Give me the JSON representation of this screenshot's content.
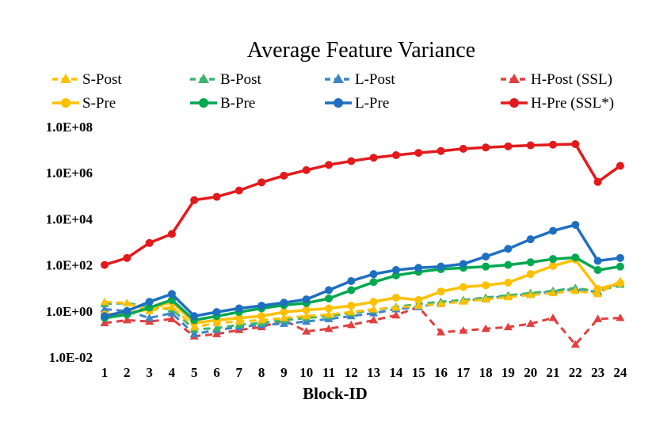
{
  "chart_data": {
    "type": "line",
    "title": "Average Feature Variance",
    "xlabel": "Block-ID",
    "ylabel": "",
    "yscale": "log",
    "ylim": [
      0.01,
      100000000
    ],
    "categories": [
      "1",
      "2",
      "3",
      "4",
      "5",
      "6",
      "7",
      "8",
      "9",
      "10",
      "11",
      "12",
      "13",
      "14",
      "15",
      "16",
      "17",
      "18",
      "19",
      "20",
      "21",
      "22",
      "23",
      "24"
    ],
    "yticks": [
      {
        "value": 0.01,
        "label": "1.0E-02"
      },
      {
        "value": 1,
        "label": "1.0E+00"
      },
      {
        "value": 100,
        "label": "1.0E+02"
      },
      {
        "value": 10000,
        "label": "1.0E+04"
      },
      {
        "value": 1000000,
        "label": "1.0E+06"
      },
      {
        "value": 100000000,
        "label": "1.0E+08"
      }
    ],
    "legend_position": "top",
    "series": [
      {
        "name": "S-Post",
        "color": "#FFC000",
        "dashed": true,
        "marker": "triangle",
        "values": [
          2.5,
          2.2,
          1.0,
          1.5,
          0.2,
          0.3,
          0.35,
          0.4,
          0.5,
          0.6,
          0.7,
          0.9,
          1.2,
          1.4,
          1.7,
          2.0,
          2.6,
          3.2,
          4.0,
          5.0,
          6.0,
          7.5,
          5.5,
          20.0
        ]
      },
      {
        "name": "B-Post",
        "color": "#3CB371",
        "dashed": true,
        "marker": "triangle",
        "values": [
          2.0,
          2.2,
          1.5,
          1.2,
          0.16,
          0.18,
          0.25,
          0.3,
          0.4,
          0.5,
          0.6,
          0.8,
          1.1,
          1.5,
          2.0,
          2.5,
          3.0,
          3.8,
          4.8,
          6.0,
          7.5,
          10.0,
          7.0,
          14.0
        ]
      },
      {
        "name": "L-Post",
        "color": "#3D85C6",
        "dashed": true,
        "marker": "triangle",
        "values": [
          1.2,
          1.0,
          0.5,
          0.8,
          0.1,
          0.15,
          0.2,
          0.25,
          0.28,
          0.35,
          0.45,
          0.6,
          0.8,
          1.2,
          1.5,
          2.2,
          2.8,
          3.5,
          4.5,
          5.5,
          7.0,
          9.0,
          6.5,
          16.0
        ]
      },
      {
        "name": "H-Post (SSL)",
        "color": "#E04040",
        "dashed": true,
        "marker": "triangle",
        "values": [
          0.3,
          0.4,
          0.35,
          0.45,
          0.08,
          0.1,
          0.15,
          0.2,
          0.4,
          0.13,
          0.17,
          0.25,
          0.4,
          0.65,
          1.5,
          0.12,
          0.14,
          0.17,
          0.2,
          0.28,
          0.5,
          0.035,
          0.45,
          0.5
        ]
      },
      {
        "name": "S-Pre",
        "color": "#FFC000",
        "dashed": false,
        "marker": "circle",
        "values": [
          0.7,
          0.8,
          1.2,
          2.5,
          0.3,
          0.4,
          0.5,
          0.6,
          0.9,
          1.1,
          1.3,
          1.7,
          2.5,
          3.8,
          3.0,
          7.0,
          11.0,
          13.0,
          17.0,
          40.0,
          90.0,
          170.0,
          9.0,
          16.0
        ]
      },
      {
        "name": "B-Pre",
        "color": "#00A850",
        "dashed": false,
        "marker": "circle",
        "values": [
          0.5,
          0.7,
          1.4,
          3.0,
          0.4,
          0.6,
          0.9,
          1.3,
          1.8,
          2.2,
          3.5,
          8.0,
          18.0,
          35.0,
          50.0,
          65.0,
          75.0,
          85.0,
          100.0,
          130.0,
          180.0,
          210.0,
          60.0,
          85.0
        ]
      },
      {
        "name": "L-Pre",
        "color": "#1F6FC0",
        "dashed": false,
        "marker": "circle",
        "values": [
          0.6,
          1.0,
          2.5,
          5.5,
          0.6,
          0.9,
          1.3,
          1.7,
          2.3,
          3.2,
          8.0,
          20.0,
          40.0,
          60.0,
          75.0,
          85.0,
          110.0,
          230.0,
          500.0,
          1300.0,
          3000.0,
          5500.0,
          150.0,
          200.0
        ]
      },
      {
        "name": "H-Pre (SSL*)",
        "color": "#E31A1C",
        "dashed": false,
        "marker": "circle",
        "values": [
          100.0,
          200.0,
          900.0,
          2200.0,
          65000.0,
          90000.0,
          170000.0,
          380000.0,
          750000.0,
          1300000.0,
          2200000.0,
          3200000.0,
          4500000.0,
          5800000.0,
          7300000.0,
          8800000.0,
          11000000.0,
          12500000.0,
          14000000.0,
          15500000.0,
          16500000.0,
          17500000.0,
          400000.0,
          2000000.0
        ]
      }
    ]
  }
}
